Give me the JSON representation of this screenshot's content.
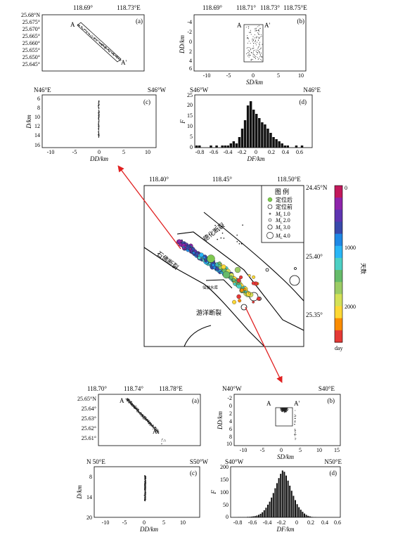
{
  "top": {
    "a": {
      "label": "(a)",
      "lon_ticks": [
        "118.69°",
        "118.73°E"
      ],
      "lat_ticks": [
        "25.68°N",
        "25.675°",
        "25.670°",
        "25.665°",
        "25.660°",
        "25.655°",
        "25.650°",
        "25.645°"
      ],
      "profile_start": "A",
      "profile_end": "A'"
    },
    "b": {
      "label": "(b)",
      "lon_ticks": [
        "118.69°",
        "118.71°",
        "118.73°",
        "118.75°E"
      ],
      "ylabel": "DD/km",
      "xlabel": "SD/km",
      "yticks": [
        "-4",
        "-2",
        "0",
        "2",
        "4",
        "6"
      ],
      "xticks": [
        "-10",
        "-5",
        "0",
        "5",
        "10"
      ],
      "profile_start": "A",
      "profile_end": "A'"
    },
    "c": {
      "label": "(c)",
      "left_dir": "N46°E",
      "right_dir": "S46°W",
      "ylabel": "D/km",
      "xlabel": "DD/km",
      "yticks": [
        "6",
        "8",
        "10",
        "12",
        "14",
        "16"
      ],
      "xticks": [
        "-10",
        "-5",
        "0",
        "5",
        "10"
      ]
    },
    "d": {
      "label": "(d)",
      "left_dir": "S46°W",
      "right_dir": "N46°E",
      "ylabel": "F",
      "xlabel": "DF/km",
      "yticks": [
        "0",
        "5",
        "10",
        "15",
        "20",
        "25"
      ],
      "xticks": [
        "-0.8",
        "-0.6",
        "-0.4",
        "-0.2",
        "0",
        "0.2",
        "0.4",
        "0.6"
      ]
    }
  },
  "map": {
    "lon_ticks": [
      "118.40°",
      "118.45°",
      "118.50°E"
    ],
    "lat_ticks": [
      "24.45°N",
      "25.40°",
      "25.35°"
    ],
    "fault_labels": [
      "德化断裂",
      "石佛断裂",
      "游洋断裂"
    ],
    "small_label": "仙游水库",
    "legend": {
      "title": "图 例",
      "after": "定位后",
      "before": "定位前",
      "mags": [
        "1.0",
        "2.0",
        "3.0",
        "4.0"
      ],
      "mag_symbol": "M",
      "mag_sub": "L"
    },
    "colorbar": {
      "ticks": [
        "0",
        "1000",
        "2000"
      ],
      "unit_label": "天数",
      "bottom_label": "day",
      "colors": [
        "#c2185b",
        "#8e24aa",
        "#5e35b1",
        "#3949ab",
        "#1e88e5",
        "#29b6f6",
        "#4dd0c4",
        "#66bb6a",
        "#9ccc65",
        "#d4e157",
        "#fdd835",
        "#fb8c00",
        "#e53935"
      ]
    }
  },
  "bottom": {
    "a": {
      "label": "(a)",
      "lon_ticks": [
        "118.70°",
        "118.74°",
        "118.78°E"
      ],
      "lat_ticks": [
        "25.65°N",
        "25.64°",
        "25.63°",
        "25.62°",
        "25.61°"
      ],
      "profile_start": "A",
      "profile_end": "A'"
    },
    "b": {
      "label": "(b)",
      "left_dir": "N40°W",
      "right_dir": "S40°E",
      "ylabel": "DD/km",
      "xlabel": "SD/km",
      "yticks": [
        "-2",
        "0",
        "2",
        "4",
        "6",
        "8",
        "10"
      ],
      "xticks": [
        "-10",
        "-5",
        "0",
        "5",
        "10",
        "15"
      ],
      "profile_start": "A",
      "profile_end": "A'"
    },
    "c": {
      "label": "(c)",
      "left_dir": "N 50°E",
      "right_dir": "S50°W",
      "ylabel": "D/km",
      "xlabel": "DD/km",
      "yticks": [
        "8",
        "14",
        "20"
      ],
      "xticks": [
        "-10",
        "-5",
        "0",
        "5",
        "10"
      ]
    },
    "d": {
      "label": "(d)",
      "left_dir": "S40°W",
      "right_dir": "N50°E",
      "ylabel": "F",
      "xlabel": "DF/km",
      "yticks": [
        "0",
        "50",
        "100",
        "150",
        "200"
      ],
      "xticks": [
        "-0.8",
        "-0.6",
        "-0.4",
        "-0.2",
        "0",
        "0.2",
        "0.4",
        "0.6"
      ]
    }
  },
  "chart_data": [
    {
      "type": "bar",
      "name": "top-d-histogram",
      "xlabel": "DF/km",
      "ylabel": "F",
      "xlim": [
        -0.85,
        0.8
      ],
      "ylim": [
        0,
        25
      ],
      "bin_width": 0.04,
      "bin_start": -0.84,
      "values": [
        1,
        1,
        0,
        0,
        0,
        1,
        0,
        1,
        0,
        1,
        1,
        1,
        2,
        3,
        2,
        5,
        9,
        13,
        20,
        22,
        18,
        16,
        14,
        12,
        11,
        9,
        7,
        5,
        4,
        3,
        2,
        1,
        1,
        0,
        0,
        1,
        0,
        1,
        0,
        0,
        0
      ]
    },
    {
      "type": "bar",
      "name": "bottom-d-histogram",
      "xlabel": "DF/km",
      "ylabel": "F",
      "xlim": [
        -0.85,
        0.65
      ],
      "ylim": [
        0,
        200
      ],
      "bin_width": 0.025,
      "bin_start": -0.75,
      "values": [
        1,
        1,
        1,
        1,
        1,
        2,
        2,
        3,
        4,
        5,
        7,
        10,
        14,
        20,
        28,
        38,
        50,
        62,
        78,
        96,
        115,
        135,
        155,
        172,
        185,
        180,
        165,
        145,
        125,
        105,
        85,
        68,
        52,
        40,
        30,
        22,
        15,
        10,
        6,
        4,
        2,
        1,
        1
      ]
    }
  ]
}
